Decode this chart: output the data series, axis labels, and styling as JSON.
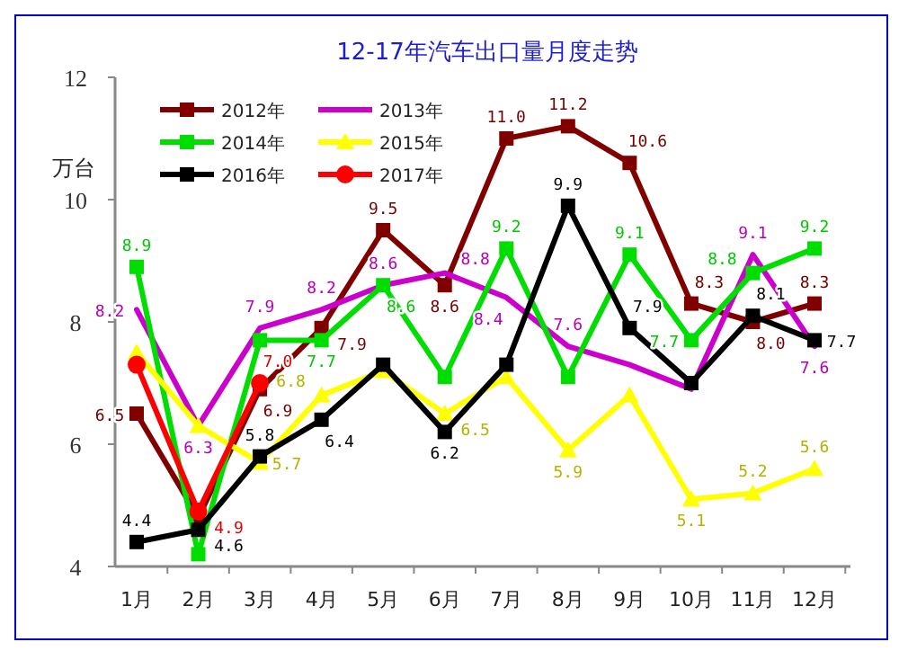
{
  "chart_data": {
    "type": "line",
    "title": "12-17年汽车出口量月度走势",
    "ylabel": "万台",
    "categories": [
      "1月",
      "2月",
      "3月",
      "4月",
      "5月",
      "6月",
      "7月",
      "8月",
      "9月",
      "10月",
      "11月",
      "12月"
    ],
    "ylim": [
      4,
      12
    ],
    "yticks": [
      4,
      6,
      8,
      10,
      12
    ],
    "grid": false,
    "legend": "top left",
    "series": [
      {
        "name": "2012年",
        "color": "#800000",
        "marker": "square",
        "values": [
          6.5,
          4.8,
          6.9,
          7.9,
          9.5,
          8.6,
          11.0,
          11.2,
          10.6,
          8.3,
          8.0,
          8.3
        ],
        "value_labels": [
          "6.5",
          null,
          "6.9",
          "7.9",
          "9.5",
          "8.6",
          "11.0",
          "11.2",
          "10.6",
          "8.3",
          "8.0",
          "8.3"
        ]
      },
      {
        "name": "2013年",
        "color": "#cc00cc",
        "marker": "none",
        "values": [
          8.2,
          6.3,
          7.9,
          8.2,
          8.6,
          8.8,
          8.4,
          7.6,
          7.3,
          6.9,
          9.1,
          7.6
        ],
        "value_labels": [
          "8.2",
          "6.3",
          "7.9",
          "8.2",
          "8.6",
          "8.8",
          "8.4",
          "7.6",
          null,
          null,
          "9.1",
          "7.6"
        ]
      },
      {
        "name": "2014年",
        "color": "#00dd00",
        "marker": "square",
        "values": [
          8.9,
          4.2,
          7.7,
          7.7,
          8.6,
          7.1,
          9.2,
          7.1,
          9.1,
          7.7,
          8.8,
          9.2
        ],
        "value_labels": [
          "8.9",
          null,
          null,
          "7.7",
          "8.6",
          null,
          "9.2",
          null,
          "9.1",
          "7.7",
          "8.8",
          "9.2"
        ]
      },
      {
        "name": "2015年",
        "color": "#ffff00",
        "marker": "triangle",
        "values": [
          7.5,
          6.3,
          5.7,
          6.8,
          7.2,
          6.5,
          7.1,
          5.9,
          6.8,
          5.1,
          5.2,
          5.6
        ],
        "value_labels": [
          null,
          null,
          "5.7",
          "6.8",
          null,
          "6.5",
          null,
          "5.9",
          null,
          "5.1",
          "5.2",
          "5.6"
        ]
      },
      {
        "name": "2016年",
        "color": "#000000",
        "marker": "square",
        "values": [
          4.4,
          4.6,
          5.8,
          6.4,
          7.3,
          6.2,
          7.3,
          9.9,
          7.9,
          7.0,
          8.1,
          7.7
        ],
        "value_labels": [
          "4.4",
          "4.6",
          "5.8",
          "6.4",
          null,
          "6.2",
          null,
          "9.9",
          "7.9",
          null,
          "8.1",
          "7.7"
        ]
      },
      {
        "name": "2017年",
        "color": "#ff0000",
        "marker": "circle",
        "values": [
          7.3,
          4.9,
          7.0,
          null,
          null,
          null,
          null,
          null,
          null,
          null,
          null,
          null
        ],
        "value_labels": [
          null,
          "4.9",
          "7.0",
          null,
          null,
          null,
          null,
          null,
          null,
          null,
          null,
          null
        ]
      }
    ]
  }
}
